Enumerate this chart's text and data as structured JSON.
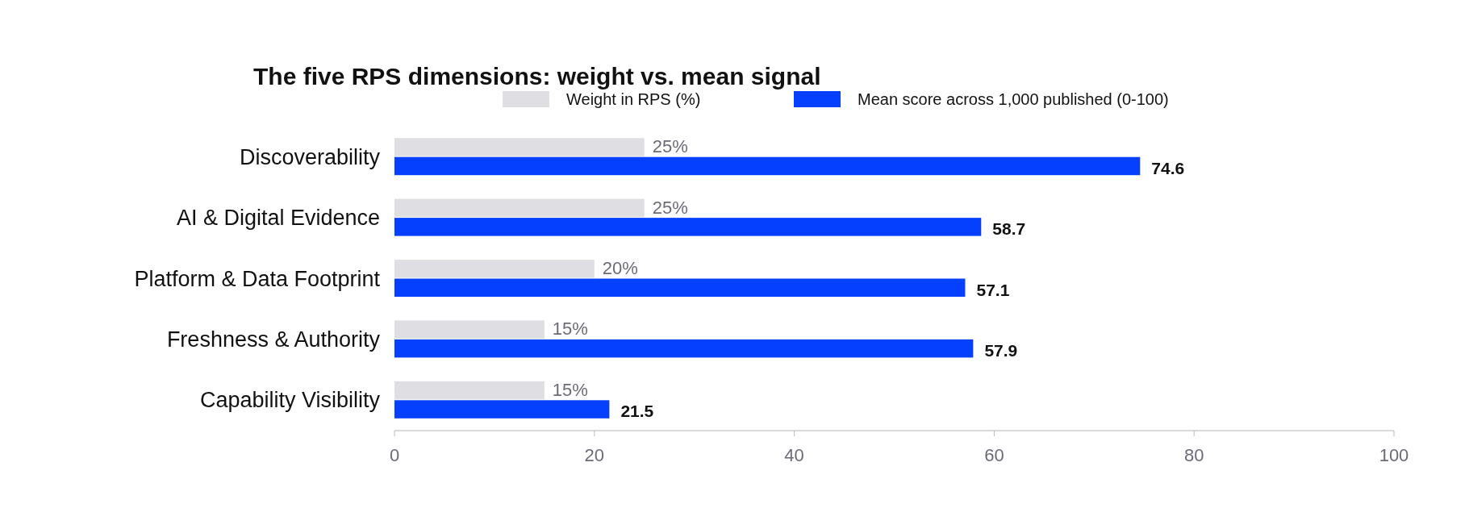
{
  "chart_data": {
    "type": "bar",
    "orientation": "horizontal",
    "title": "The five RPS dimensions: weight vs. mean signal",
    "categories": [
      "Discoverability",
      "AI & Digital Evidence",
      "Platform & Data Footprint",
      "Freshness & Authority",
      "Capability Visibility"
    ],
    "series": [
      {
        "name": "Weight in RPS (%)",
        "color": "#dfdfe3",
        "values": [
          25,
          25,
          20,
          15,
          15
        ],
        "value_labels": [
          "25%",
          "25%",
          "20%",
          "15%",
          "15%"
        ]
      },
      {
        "name": "Mean score across 1,000 published (0-100)",
        "color": "#0540ff",
        "values": [
          74.6,
          58.7,
          57.1,
          57.9,
          21.5
        ],
        "value_labels": [
          "74.6",
          "58.7",
          "57.1",
          "57.9",
          "21.5"
        ]
      }
    ],
    "xlim": [
      0,
      100
    ],
    "xticks": [
      0,
      20,
      40,
      60,
      80,
      100
    ],
    "grid": false,
    "legend": "top"
  }
}
